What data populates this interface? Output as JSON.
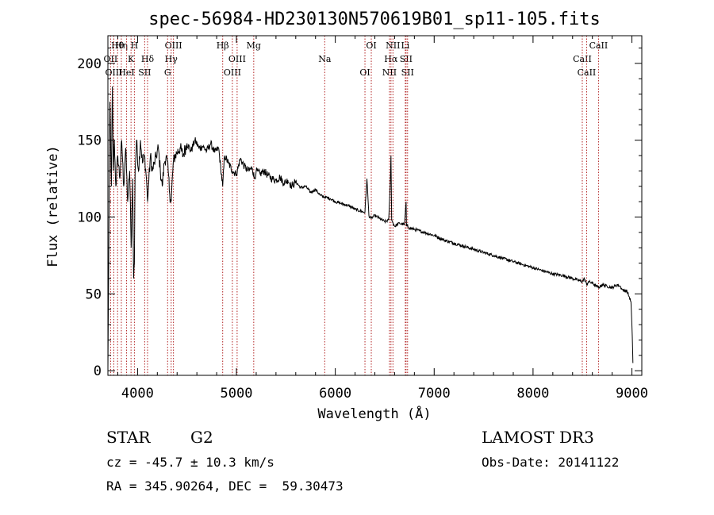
{
  "chart_data": {
    "type": "line",
    "title": "spec-56984-HD230130N570619B01_sp11-105.fits",
    "xlabel": "Wavelength (Å)",
    "ylabel": "Flux (relative)",
    "xlim": [
      3700,
      9100
    ],
    "ylim": [
      -3,
      218
    ],
    "x_ticks": [
      4000,
      5000,
      6000,
      7000,
      8000,
      9000
    ],
    "x_tick_labels": [
      "4000",
      "5000",
      "6000",
      "7000",
      "8000",
      "9000"
    ],
    "y_ticks": [
      0,
      50,
      100,
      150,
      200
    ],
    "y_tick_labels": [
      "0",
      "50",
      "100",
      "150",
      "200"
    ],
    "spectrum": {
      "name": "flux",
      "x": [
        3700,
        3720,
        3735,
        3745,
        3755,
        3765,
        3780,
        3800,
        3820,
        3840,
        3860,
        3880,
        3900,
        3920,
        3935,
        3950,
        3960,
        3968,
        3975,
        3990,
        4010,
        4030,
        4050,
        4070,
        4090,
        4101,
        4110,
        4130,
        4150,
        4170,
        4190,
        4210,
        4230,
        4250,
        4270,
        4290,
        4310,
        4325,
        4340,
        4360,
        4380,
        4400,
        4430,
        4460,
        4500,
        4540,
        4580,
        4620,
        4660,
        4700,
        4740,
        4780,
        4820,
        4861,
        4880,
        4920,
        4960,
        5000,
        5040,
        5080,
        5120,
        5160,
        5183,
        5200,
        5240,
        5280,
        5320,
        5360,
        5400,
        5440,
        5480,
        5520,
        5560,
        5600,
        5650,
        5700,
        5750,
        5800,
        5850,
        5893,
        5950,
        6000,
        6050,
        6100,
        6150,
        6200,
        6250,
        6300,
        6320,
        6340,
        6360,
        6400,
        6450,
        6500,
        6540,
        6555,
        6563,
        6570,
        6585,
        6600,
        6650,
        6700,
        6716,
        6720,
        6731,
        6740,
        6800,
        6900,
        7000,
        7100,
        7200,
        7300,
        7400,
        7500,
        7600,
        7700,
        7800,
        7900,
        8000,
        8100,
        8200,
        8300,
        8400,
        8450,
        8498,
        8520,
        8542,
        8560,
        8600,
        8662,
        8700,
        8750,
        8800,
        8850,
        8880,
        8900,
        8920,
        8950,
        8990,
        9000,
        9010
      ],
      "y": [
        0,
        175,
        120,
        185,
        130,
        150,
        120,
        140,
        125,
        150,
        120,
        145,
        110,
        130,
        80,
        125,
        60,
        70,
        130,
        150,
        130,
        150,
        135,
        140,
        125,
        110,
        120,
        140,
        130,
        135,
        140,
        145,
        130,
        120,
        135,
        140,
        130,
        115,
        110,
        135,
        140,
        142,
        145,
        140,
        148,
        143,
        150,
        145,
        146,
        143,
        148,
        142,
        145,
        120,
        140,
        135,
        130,
        128,
        138,
        133,
        130,
        132,
        125,
        130,
        128,
        130,
        127,
        125,
        124,
        126,
        122,
        124,
        120,
        123,
        119,
        120,
        116,
        118,
        114,
        113,
        112,
        110,
        109,
        108,
        107,
        105,
        104,
        103,
        125,
        101,
        99,
        101,
        99,
        97,
        98,
        120,
        140,
        98,
        96,
        94,
        96,
        95,
        110,
        94,
        95,
        93,
        92,
        90,
        88,
        85,
        83,
        81,
        79,
        77,
        75,
        73,
        71,
        69,
        67,
        65,
        63,
        62,
        60,
        59,
        58,
        60,
        56,
        58,
        57,
        54,
        56,
        55,
        54,
        56,
        55,
        53,
        52,
        52,
        45,
        30,
        5
      ]
    },
    "line_markers": [
      {
        "label": "Hθ",
        "wavelength": 3798
      },
      {
        "label": "OII",
        "wavelength": 3727
      },
      {
        "label": "OIII",
        "wavelength": 3760
      },
      {
        "label": "Hη",
        "wavelength": 3836
      },
      {
        "label": "K",
        "wavelength": 3934
      },
      {
        "label": "HeI",
        "wavelength": 3889
      },
      {
        "label": "H",
        "wavelength": 3968
      },
      {
        "label": "Hδ",
        "wavelength": 4101
      },
      {
        "label": "SII",
        "wavelength": 4072
      },
      {
        "label": "OIII",
        "wavelength": 4363
      },
      {
        "label": "Hγ",
        "wavelength": 4340
      },
      {
        "label": "G",
        "wavelength": 4304
      },
      {
        "label": "Hβ",
        "wavelength": 4861
      },
      {
        "label": "OIII",
        "wavelength": 5007
      },
      {
        "label": "OIII",
        "wavelength": 4959
      },
      {
        "label": "Mg",
        "wavelength": 5175
      },
      {
        "label": "Na",
        "wavelength": 5893
      },
      {
        "label": "OI",
        "wavelength": 6300
      },
      {
        "label": "OI",
        "wavelength": 6364
      },
      {
        "label": "Hα",
        "wavelength": 6563
      },
      {
        "label": "NII",
        "wavelength": 6548
      },
      {
        "label": "NII",
        "wavelength": 6583
      },
      {
        "label": "SII",
        "wavelength": 6716
      },
      {
        "label": "SII",
        "wavelength": 6731
      },
      {
        "label": "Li",
        "wavelength": 6708
      },
      {
        "label": "CaII",
        "wavelength": 8498
      },
      {
        "label": "CaII",
        "wavelength": 8542
      },
      {
        "label": "CaII",
        "wavelength": 8662
      }
    ],
    "colors": {
      "spectrum": "#000000",
      "markers": "#b22222",
      "axes": "#000000"
    }
  },
  "info": {
    "class_label": "STAR",
    "subclass_label": "G2",
    "survey": "LAMOST DR3",
    "cz": "cz = -45.7 ± 10.3 km/s",
    "obs_date": "Obs-Date: 20141122",
    "coords": "RA = 345.90264, DEC =  59.30473"
  }
}
